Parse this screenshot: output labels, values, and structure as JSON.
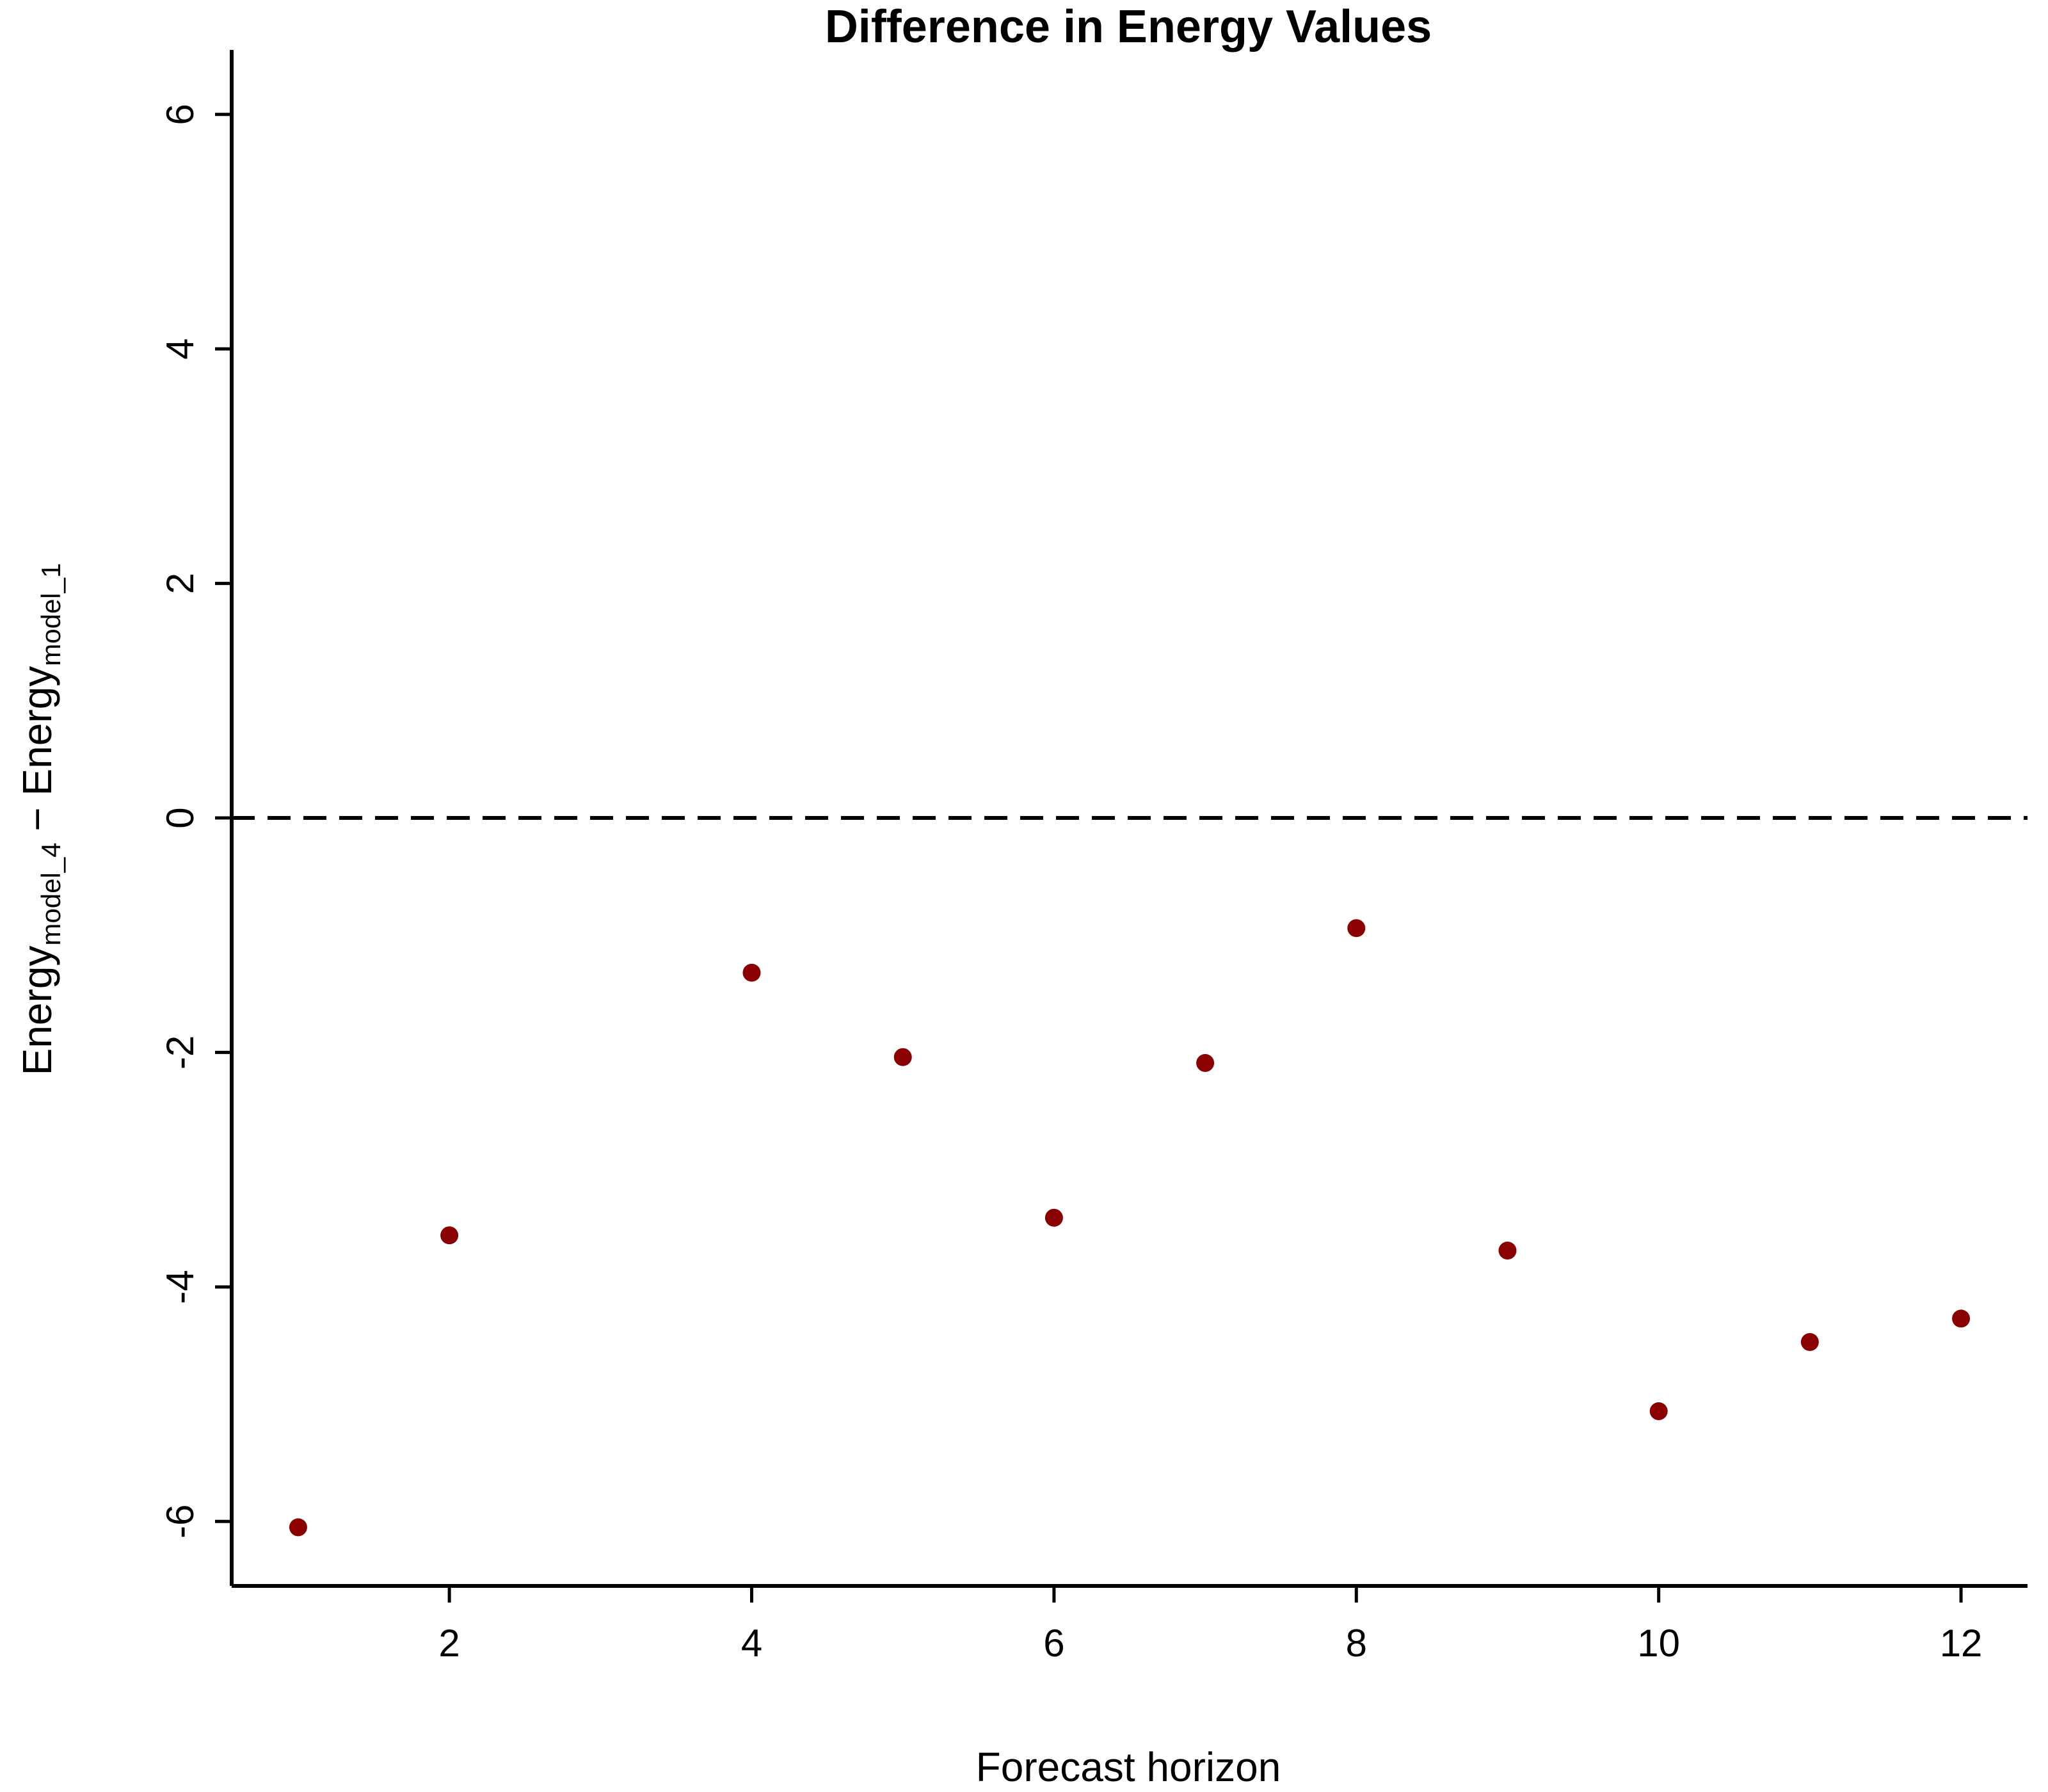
{
  "chart_data": {
    "type": "scatter",
    "title": "Difference in Energy Values",
    "xlabel": "Forecast horizon",
    "ylabel": {
      "main_a": "Energy",
      "sub_a": "model_4",
      "sep": " − ",
      "main_b": "Energy",
      "sub_b": "model_1"
    },
    "xlim": [
      0.56,
      12.44
    ],
    "ylim": [
      -6.55,
      6.55
    ],
    "xticks": [
      2,
      4,
      6,
      8,
      10,
      12
    ],
    "yticks": [
      -6,
      -4,
      -2,
      0,
      2,
      4,
      6
    ],
    "reference_line": {
      "y": 0,
      "style": "dashed"
    },
    "grid": false,
    "point_color": "#8B0000",
    "points": [
      {
        "x": 1,
        "y": -6.05
      },
      {
        "x": 2,
        "y": -3.56
      },
      {
        "x": 4,
        "y": -1.32
      },
      {
        "x": 5,
        "y": -2.04
      },
      {
        "x": 6,
        "y": -3.41
      },
      {
        "x": 7,
        "y": -2.09
      },
      {
        "x": 8,
        "y": -0.94
      },
      {
        "x": 9,
        "y": -3.69
      },
      {
        "x": 10,
        "y": -5.06
      },
      {
        "x": 11,
        "y": -4.47
      },
      {
        "x": 12,
        "y": -4.27
      }
    ]
  }
}
